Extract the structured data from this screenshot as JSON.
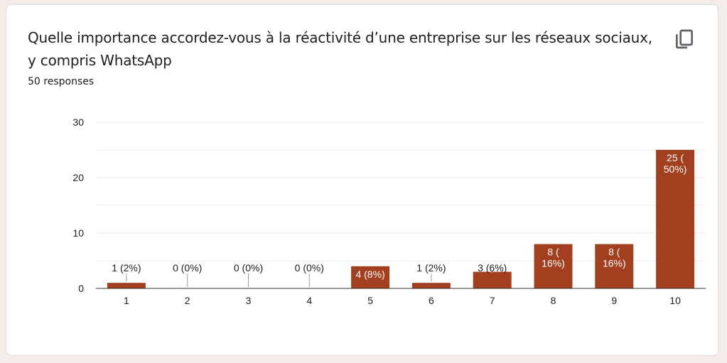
{
  "card": {
    "title": "Quelle importance accordez-vous à la réactivité d’une entreprise sur les réseaux sociaux, y compris WhatsApp",
    "responses": "50 responses",
    "copy_icon": "copy-icon"
  },
  "colors": {
    "bar": "#a23f1f",
    "grid": "#ebebeb",
    "axis": "#333333",
    "text": "#202124"
  },
  "chart_data": {
    "type": "bar",
    "categories": [
      "1",
      "2",
      "3",
      "4",
      "5",
      "6",
      "7",
      "8",
      "9",
      "10"
    ],
    "values": [
      1,
      0,
      0,
      0,
      4,
      1,
      3,
      8,
      8,
      25
    ],
    "data_labels": [
      [
        "1 (2%)"
      ],
      [
        "0 (0%)"
      ],
      [
        "0 (0%)"
      ],
      [
        "0 (0%)"
      ],
      [
        "4 (8%)"
      ],
      [
        "1 (2%)"
      ],
      [
        "3 (6%)"
      ],
      [
        "8 (",
        "16%)"
      ],
      [
        "8 (",
        "16%)"
      ],
      [
        "25 (",
        "50%)"
      ]
    ],
    "ylim": [
      0,
      30
    ],
    "yticks": [
      0,
      10,
      20,
      30
    ],
    "title": "",
    "xlabel": "",
    "ylabel": "",
    "grid": true
  }
}
